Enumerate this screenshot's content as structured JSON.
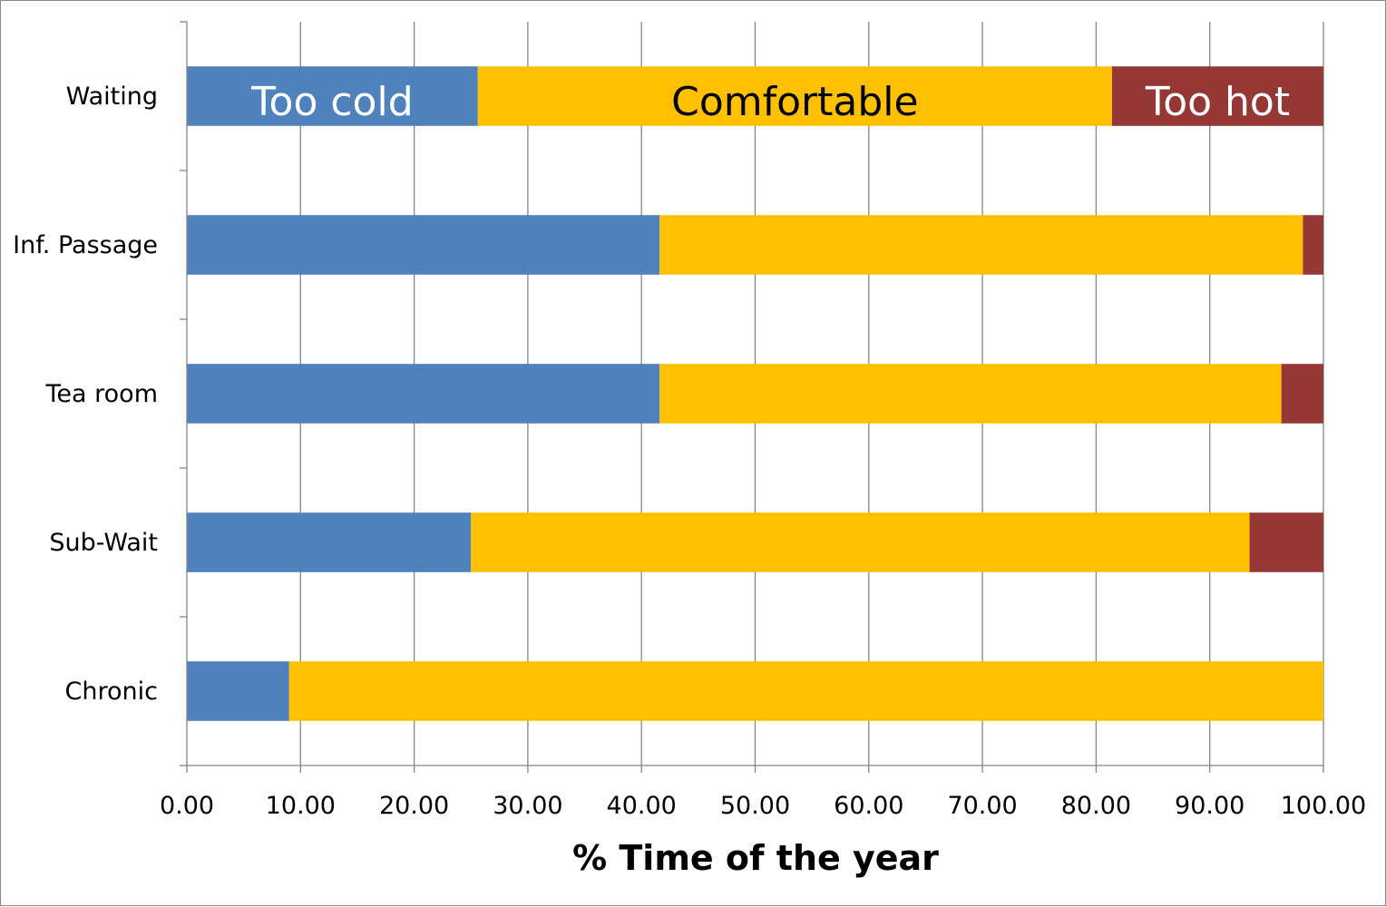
{
  "chart_data": {
    "type": "bar",
    "orientation": "horizontal",
    "stacked": true,
    "categories": [
      "Waiting",
      "Inf. Passage",
      "Tea room",
      "Sub-Wait",
      "Chronic"
    ],
    "series": [
      {
        "name": "Too cold",
        "color": "#4f81bd",
        "values": [
          25.6,
          41.6,
          41.6,
          25.0,
          9.0
        ]
      },
      {
        "name": "Comfortable",
        "color": "#ffc000",
        "values": [
          55.8,
          56.6,
          54.7,
          68.5,
          91.0
        ]
      },
      {
        "name": "Too hot",
        "color": "#953735",
        "values": [
          18.6,
          1.8,
          3.7,
          6.5,
          0.0
        ]
      }
    ],
    "segment_labels": [
      {
        "text": "Too cold",
        "color": "#ffffff"
      },
      {
        "text": "Comfortable",
        "color": "#000000"
      },
      {
        "text": "Too hot",
        "color": "#ffffff"
      }
    ],
    "x_ticks": [
      "0.00",
      "10.00",
      "20.00",
      "30.00",
      "40.00",
      "50.00",
      "60.00",
      "70.00",
      "80.00",
      "90.00",
      "100.00"
    ],
    "xlim": [
      0,
      100
    ],
    "xlabel": "% Time of the year",
    "ylabel": "",
    "title": "",
    "grid": "vertical major gridlines",
    "legend": "none (series named inside the Waiting bar)"
  }
}
